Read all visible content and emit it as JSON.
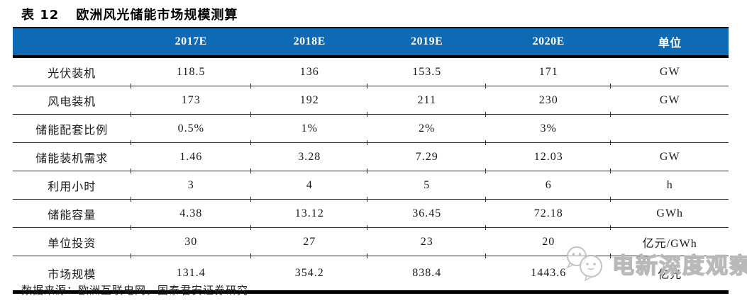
{
  "header": {
    "table_number": "表 12",
    "title": "欧洲风光储能市场规模测算"
  },
  "chart_data": {
    "type": "table",
    "title": "表 12 欧洲风光储能市场规模测算",
    "columns": [
      "",
      "2017E",
      "2018E",
      "2019E",
      "2020E",
      "单位"
    ],
    "rows": [
      [
        "光伏装机",
        "118.5",
        "136",
        "153.5",
        "171",
        "GW"
      ],
      [
        "风电装机",
        "173",
        "192",
        "211",
        "230",
        "GW"
      ],
      [
        "储能配套比例",
        "0.5%",
        "1%",
        "2%",
        "3%",
        ""
      ],
      [
        "储能装机需求",
        "1.46",
        "3.28",
        "7.29",
        "12.03",
        "GW"
      ],
      [
        "利用小时",
        "3",
        "4",
        "5",
        "6",
        "h"
      ],
      [
        "储能容量",
        "4.38",
        "13.12",
        "36.45",
        "72.18",
        "GWh"
      ],
      [
        "单位投资",
        "30",
        "27",
        "23",
        "20",
        "亿元/GWh"
      ],
      [
        "市场规模",
        "131.4",
        "354.2",
        "838.4",
        "1443.6",
        "亿元"
      ]
    ],
    "source": "数据来源：欧洲互联电网，国泰君安证券研究"
  },
  "footer": {
    "source": "数据来源：欧洲互联电网，国泰君安证券研究"
  },
  "watermark": {
    "text": "电新深度观察",
    "icon": "chat-bubbles-icon"
  },
  "colors": {
    "header_bg": "#0F6AB5",
    "header_text": "#FFFFFF",
    "border": "#000000",
    "watermark_gray": "#B9B9B9"
  }
}
